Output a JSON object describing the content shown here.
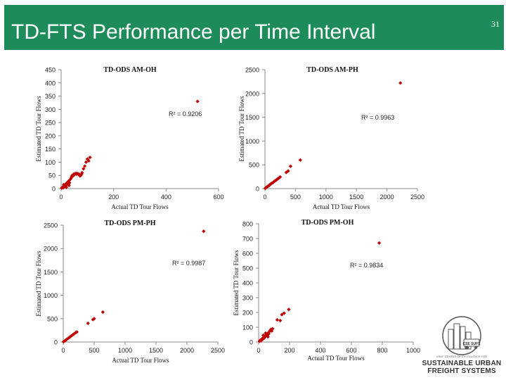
{
  "slide": {
    "title": "TD-FTS Performance per Time Interval",
    "page_number": "31",
    "accent_color": "#1e8c5a",
    "marker_color": "#c00000"
  },
  "logo": {
    "org_line": "VREF CENTER OF EXCELLENCE FOR",
    "line1": "SUSTAINABLE URBAN",
    "line2": "FREIGHT SYSTEMS",
    "badge": "CSE SUFS"
  },
  "chart_data": [
    {
      "type": "scatter",
      "title": "TD-ODS AM-OH",
      "xlabel": "Actual TD Tour Flows",
      "ylabel": "Estimated TD Tour Flows",
      "xlim": [
        0,
        600
      ],
      "ylim": [
        0,
        450
      ],
      "xticks": [
        "0",
        "200",
        "400",
        "600"
      ],
      "yticks": [
        "0",
        "50",
        "100",
        "150",
        "200",
        "250",
        "300",
        "350",
        "400",
        "450"
      ],
      "r2_label": "R² = 0.9206",
      "points": [
        [
          2,
          2
        ],
        [
          5,
          5
        ],
        [
          8,
          3
        ],
        [
          10,
          10
        ],
        [
          12,
          8
        ],
        [
          15,
          14
        ],
        [
          18,
          12
        ],
        [
          20,
          20
        ],
        [
          22,
          16
        ],
        [
          25,
          25
        ],
        [
          28,
          20
        ],
        [
          30,
          30
        ],
        [
          32,
          22
        ],
        [
          35,
          35
        ],
        [
          20,
          5
        ],
        [
          10,
          15
        ],
        [
          30,
          12
        ],
        [
          38,
          40
        ],
        [
          40,
          45
        ],
        [
          42,
          50
        ],
        [
          45,
          48
        ],
        [
          48,
          55
        ],
        [
          50,
          52
        ],
        [
          52,
          55
        ],
        [
          55,
          57
        ],
        [
          58,
          55
        ],
        [
          60,
          58
        ],
        [
          62,
          56
        ],
        [
          65,
          55
        ],
        [
          68,
          55
        ],
        [
          70,
          52
        ],
        [
          72,
          48
        ],
        [
          75,
          50
        ],
        [
          78,
          55
        ],
        [
          80,
          60
        ],
        [
          85,
          75
        ],
        [
          90,
          85
        ],
        [
          95,
          100
        ],
        [
          100,
          112
        ],
        [
          105,
          105
        ],
        [
          110,
          118
        ],
        [
          520,
          330
        ]
      ]
    },
    {
      "type": "scatter",
      "title": "TD-ODS AM-PH",
      "xlabel": "Actual TD Tour Flows",
      "ylabel": "Estimated TD Tour Flows",
      "xlim": [
        0,
        2500
      ],
      "ylim": [
        0,
        2500
      ],
      "xticks": [
        "0",
        "500",
        "1000",
        "1500",
        "2000",
        "2500"
      ],
      "yticks": [
        "0",
        "500",
        "1000",
        "1500",
        "2000",
        "2500"
      ],
      "r2_label": "R² = 0.9963",
      "points": [
        [
          5,
          5
        ],
        [
          15,
          15
        ],
        [
          25,
          30
        ],
        [
          40,
          40
        ],
        [
          55,
          55
        ],
        [
          70,
          65
        ],
        [
          85,
          90
        ],
        [
          100,
          100
        ],
        [
          115,
          115
        ],
        [
          130,
          125
        ],
        [
          145,
          140
        ],
        [
          160,
          160
        ],
        [
          175,
          170
        ],
        [
          190,
          185
        ],
        [
          205,
          200
        ],
        [
          220,
          215
        ],
        [
          235,
          230
        ],
        [
          250,
          245
        ],
        [
          350,
          340
        ],
        [
          380,
          370
        ],
        [
          420,
          470
        ],
        [
          580,
          600
        ],
        [
          2220,
          2220
        ]
      ]
    },
    {
      "type": "scatter",
      "title": "TD-ODS PM-PH",
      "xlabel": "Actual TD Tour Flows",
      "ylabel": "Estimated TD Tour Flows",
      "xlim": [
        0,
        2500
      ],
      "ylim": [
        0,
        2500
      ],
      "xticks": [
        "0",
        "500",
        "1000",
        "1500",
        "2000",
        "2500"
      ],
      "yticks": [
        "0",
        "500",
        "1000",
        "1500",
        "2000",
        "2500"
      ],
      "r2_label": "R² = 0.9987",
      "points": [
        [
          5,
          5
        ],
        [
          20,
          20
        ],
        [
          40,
          40
        ],
        [
          60,
          60
        ],
        [
          80,
          80
        ],
        [
          100,
          100
        ],
        [
          120,
          120
        ],
        [
          140,
          140
        ],
        [
          160,
          160
        ],
        [
          180,
          180
        ],
        [
          200,
          200
        ],
        [
          220,
          215
        ],
        [
          400,
          400
        ],
        [
          480,
          480
        ],
        [
          500,
          500
        ],
        [
          640,
          640
        ],
        [
          2270,
          2370
        ]
      ]
    },
    {
      "type": "scatter",
      "title": "TD-ODS PM-OH",
      "xlabel": "Actual TD Tour Flows",
      "ylabel": "Estimated TD Tour Flows",
      "xlim": [
        0,
        1000
      ],
      "ylim": [
        0,
        800
      ],
      "xticks": [
        "0",
        "200",
        "400",
        "600",
        "800",
        "1000"
      ],
      "yticks": [
        "0",
        "100",
        "200",
        "300",
        "400",
        "500",
        "600",
        "700",
        "800"
      ],
      "r2_label": "R² = 0.9834",
      "points": [
        [
          5,
          5
        ],
        [
          10,
          12
        ],
        [
          15,
          8
        ],
        [
          20,
          20
        ],
        [
          25,
          18
        ],
        [
          30,
          30
        ],
        [
          35,
          25
        ],
        [
          40,
          40
        ],
        [
          45,
          38
        ],
        [
          50,
          50
        ],
        [
          55,
          45
        ],
        [
          60,
          60
        ],
        [
          65,
          55
        ],
        [
          70,
          70
        ],
        [
          75,
          80
        ],
        [
          80,
          85
        ],
        [
          85,
          75
        ],
        [
          90,
          90
        ],
        [
          60,
          35
        ],
        [
          45,
          60
        ],
        [
          30,
          45
        ],
        [
          120,
          150
        ],
        [
          140,
          145
        ],
        [
          150,
          185
        ],
        [
          165,
          195
        ],
        [
          195,
          220
        ],
        [
          780,
          670
        ]
      ]
    }
  ]
}
